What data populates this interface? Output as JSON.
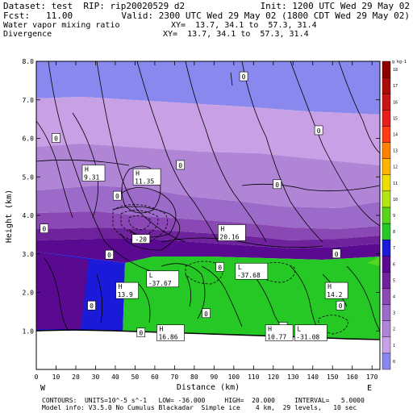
{
  "header": {
    "line1_left": "Dataset: test  RIP: rip20020529 d2",
    "line1_right": "Init: 1200 UTC Wed 29 May 02",
    "line2_left": "Fcst:   11.00",
    "line2_right": "Valid: 2300 UTC Wed 29 May 02 (1800 CDT Wed 29 May 02)",
    "line3_left": "Water vapor mixing ratio",
    "line3_right": "XY=  13.7, 34.1 to  57.3, 31.4",
    "line4_left": "Divergence",
    "line4_right": "XY=  13.7, 34.1 to  57.3, 31.4"
  },
  "footer": {
    "line1": "CONTOURS:  UNITS=10^-5 s^-1   LOW= -36.000     HIGH=  20.000     INTERVAL=   5.0000",
    "line2": "Model info: V3.5.0 No Cumulus Blackadar  Simple ice    4 km,  29 levels,   10 sec"
  },
  "chart_data": {
    "type": "heatmap",
    "title": "Water vapor mixing ratio",
    "overlay": "Divergence contours",
    "xlabel": "Distance (km)",
    "ylabel": "Height (km)",
    "x_ticks": [
      0,
      10,
      20,
      30,
      40,
      50,
      60,
      70,
      80,
      90,
      100,
      110,
      120,
      130,
      140,
      150,
      160,
      170
    ],
    "y_ticks": [
      "1.0",
      "2.0",
      "3.0",
      "4.0",
      "5.0",
      "6.0",
      "7.0",
      "8.0"
    ],
    "xlim": [
      0,
      174
    ],
    "ylim": [
      0,
      8
    ],
    "x_end_labels": {
      "left": "W",
      "right": "E"
    },
    "colorbar": {
      "unit": "g kg-1",
      "levels": [
        0,
        1,
        2,
        3,
        4,
        5,
        6,
        7,
        8,
        9,
        10,
        11,
        12,
        13,
        14,
        15,
        16,
        17,
        18
      ],
      "colors": [
        "#8888ee",
        "#c8a0e6",
        "#b085d6",
        "#9c6ac8",
        "#8a48b4",
        "#6e229c",
        "#5a0a90",
        "#1a1ad8",
        "#26c826",
        "#57d51c",
        "#b4e614",
        "#eede00",
        "#ffb400",
        "#ff8200",
        "#ff3c14",
        "#e61e1e",
        "#c81414",
        "#aa0a0a",
        "#8c0000"
      ]
    },
    "contour_labels": [
      {
        "x": 105,
        "y": 7.6,
        "text": "0",
        "kind": "zero"
      },
      {
        "x": 10,
        "y": 6.0,
        "text": "0",
        "kind": "zero"
      },
      {
        "x": 143,
        "y": 6.2,
        "text": "0",
        "kind": "zero"
      },
      {
        "x": 73,
        "y": 5.3,
        "text": "0",
        "kind": "zero"
      },
      {
        "x": 41,
        "y": 4.5,
        "text": "0",
        "kind": "zero"
      },
      {
        "x": 122,
        "y": 4.8,
        "text": "0",
        "kind": "zero"
      },
      {
        "x": 4,
        "y": 3.65,
        "text": "0",
        "kind": "zero"
      },
      {
        "x": 37,
        "y": 2.97,
        "text": "0",
        "kind": "zero"
      },
      {
        "x": 93,
        "y": 2.65,
        "text": "0",
        "kind": "zero"
      },
      {
        "x": 152,
        "y": 3.0,
        "text": "0",
        "kind": "zero"
      },
      {
        "x": 28,
        "y": 1.65,
        "text": "0",
        "kind": "zero"
      },
      {
        "x": 86,
        "y": 1.45,
        "text": "0",
        "kind": "zero"
      },
      {
        "x": 154,
        "y": 1.65,
        "text": "0",
        "kind": "zero"
      },
      {
        "x": 53,
        "y": 0.95,
        "text": "0",
        "kind": "zero"
      },
      {
        "x": 125,
        "y": 1.1,
        "text": "0",
        "kind": "zero"
      },
      {
        "x": 29,
        "y": 5.1,
        "text": "9.31",
        "kind": "H"
      },
      {
        "x": 56,
        "y": 5.0,
        "text": "11.35",
        "kind": "H"
      },
      {
        "x": 99,
        "y": 3.55,
        "text": "20.16",
        "kind": "H"
      },
      {
        "x": 46,
        "y": 2.05,
        "text": "13.9",
        "kind": "H"
      },
      {
        "x": 152,
        "y": 2.05,
        "text": "14.2",
        "kind": "H"
      },
      {
        "x": 68,
        "y": 0.95,
        "text": "16.86",
        "kind": "H"
      },
      {
        "x": 123,
        "y": 0.95,
        "text": "10.77",
        "kind": "H"
      },
      {
        "x": 53,
        "y": 3.38,
        "text": "-20",
        "kind": "neg"
      },
      {
        "x": 64,
        "y": 2.35,
        "text": "-37.67",
        "kind": "L"
      },
      {
        "x": 109,
        "y": 2.55,
        "text": "-37.68",
        "kind": "L"
      },
      {
        "x": 139,
        "y": 0.95,
        "text": "-31.08",
        "kind": "L"
      }
    ]
  }
}
